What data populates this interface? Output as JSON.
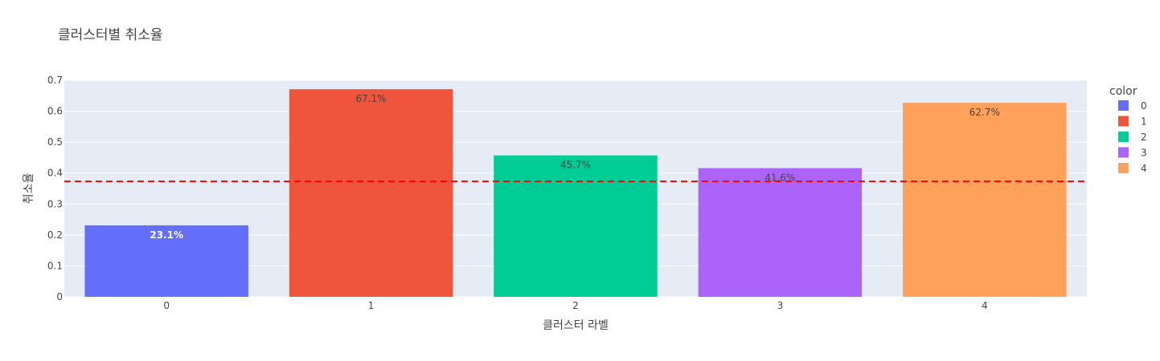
{
  "chart_data": {
    "type": "bar",
    "title": "클러스터별 취소율",
    "xlabel": "클러스터 라벨",
    "ylabel": "취소율",
    "categories": [
      "0",
      "1",
      "2",
      "3",
      "4"
    ],
    "values": [
      0.231,
      0.671,
      0.457,
      0.416,
      0.627
    ],
    "data_labels": [
      "23.1%",
      "67.1%",
      "45.7%",
      "41.6%",
      "62.7%"
    ],
    "ylim": [
      0,
      0.7
    ],
    "yticks": [
      "0",
      "0.1",
      "0.2",
      "0.3",
      "0.4",
      "0.5",
      "0.6",
      "0.7"
    ],
    "reference_line": {
      "value": 0.373,
      "style": "dashed",
      "color": "#ff0000"
    },
    "grid": true,
    "legend": {
      "title": "color",
      "position": "right",
      "items": [
        "0",
        "1",
        "2",
        "3",
        "4"
      ]
    },
    "colors": [
      "#636efa",
      "#ef553b",
      "#00cc96",
      "#ab63fa",
      "#ffa15a"
    ],
    "label_colors": [
      "#ffffff",
      "#444444",
      "#444444",
      "#444444",
      "#444444"
    ],
    "plot_background": "#e5ecf6"
  }
}
